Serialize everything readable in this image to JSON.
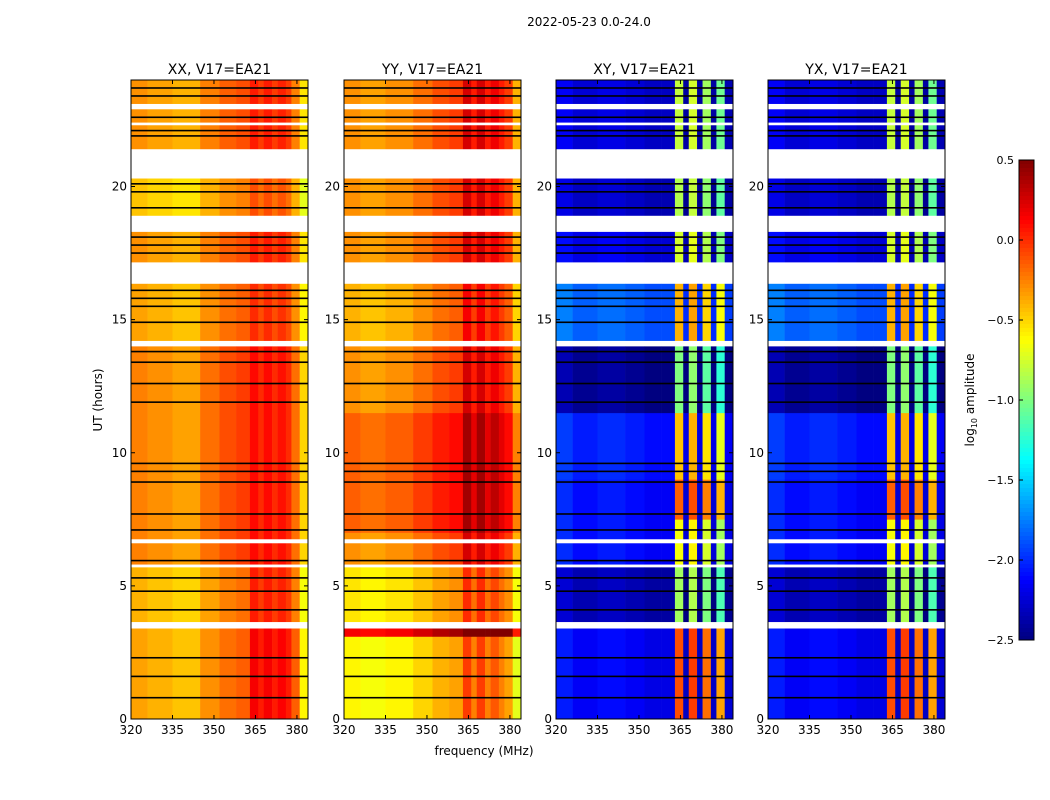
{
  "chart_data": {
    "type": "heatmap",
    "suptitle": "2022-05-23 0.0-24.0",
    "xlabel": "frequency (MHz)",
    "ylabel": "UT (hours)",
    "xlim": [
      320,
      384
    ],
    "ylim": [
      0,
      24
    ],
    "xticks": [
      "320",
      "335",
      "350",
      "365",
      "380"
    ],
    "yticks": [
      "0",
      "5",
      "10",
      "15",
      "20"
    ],
    "colorbar": {
      "label": "log10 amplitude",
      "label_main": "log",
      "label_sub": "10",
      "label_rest": " amplitude",
      "range": [
        -2.5,
        0.5
      ],
      "ticks": [
        "0.5",
        "0.0",
        "−0.5",
        "−1.0",
        "−1.5",
        "−2.0",
        "−2.5"
      ],
      "colormap": "jet"
    },
    "freq_edges": [
      320,
      326,
      335,
      345,
      352,
      358,
      363,
      366,
      368,
      371,
      373,
      376,
      378,
      381,
      384
    ],
    "gaps_hours": [
      [
        20.3,
        21.4
      ],
      [
        18.3,
        18.9
      ],
      [
        16.35,
        17.15
      ],
      [
        14.0,
        14.2
      ],
      [
        3.4,
        3.64
      ],
      [
        22.9,
        23.1
      ],
      [
        22.3,
        22.4
      ],
      [
        5.7,
        5.8
      ],
      [
        6.6,
        6.75
      ]
    ],
    "flag_lines_hours": [
      0.8,
      1.6,
      2.3,
      4.1,
      4.8,
      5.3,
      5.95,
      7.1,
      7.7,
      8.9,
      9.3,
      9.6,
      11.9,
      12.6,
      13.4,
      13.8,
      14.9,
      15.5,
      15.8,
      16.1,
      17.5,
      17.8,
      18.1,
      19.2,
      19.8,
      20.1,
      21.9,
      22.1,
      22.6,
      23.4,
      23.7
    ],
    "panels": [
      {
        "title": "XX, V17=EA21",
        "profile": [
          -0.25,
          -0.3,
          -0.35,
          -0.2,
          -0.1,
          -0.05,
          0.1,
          0.0,
          0.1,
          0.0,
          0.08,
          0.0,
          -0.2,
          -0.5
        ],
        "bands": [
          [
            0,
            3.4,
            -0.1,
            0.15
          ],
          [
            3.64,
            5.7,
            -0.15,
            0.1
          ],
          [
            5.8,
            14,
            0,
            0
          ],
          [
            14.2,
            16.35,
            -0.1,
            0
          ],
          [
            17.15,
            18.3,
            -0.05,
            0
          ],
          [
            18.9,
            20.3,
            -0.2,
            0
          ],
          [
            21.4,
            24,
            -0.05,
            0
          ]
        ]
      },
      {
        "title": "YY, V17=EA21",
        "profile": [
          -0.35,
          -0.4,
          -0.35,
          -0.25,
          -0.15,
          -0.1,
          0.2,
          0.0,
          0.2,
          0.0,
          0.12,
          0.0,
          -0.1,
          -0.45
        ],
        "bands": [
          [
            0,
            3.1,
            -0.25,
            0
          ],
          [
            3.1,
            3.4,
            0.5,
            0.2
          ],
          [
            3.64,
            5.7,
            -0.2,
            0
          ],
          [
            5.8,
            7,
            0.05,
            0
          ],
          [
            7,
            11.5,
            0.2,
            0
          ],
          [
            11.5,
            14,
            0.05,
            0
          ],
          [
            14.2,
            16.35,
            -0.05,
            0
          ],
          [
            17.15,
            18.3,
            0.05,
            0
          ],
          [
            18.9,
            20.3,
            0.05,
            0
          ],
          [
            21.4,
            24,
            0.05,
            0
          ]
        ]
      },
      {
        "title": "XY, V17=EA21",
        "profile": [
          -2.05,
          -2.15,
          -2.1,
          -2.15,
          -2.2,
          -2.2,
          -0.7,
          -2.3,
          -0.65,
          -2.3,
          -0.8,
          -2.3,
          -0.95,
          -2.25
        ],
        "bands": [
          [
            0,
            3.4,
            0,
            0.6
          ],
          [
            3.64,
            5.7,
            -0.2,
            0
          ],
          [
            5.8,
            7.5,
            0.05,
            0
          ],
          [
            7.5,
            9,
            0.05,
            0.5
          ],
          [
            9,
            11.5,
            0.1,
            0.15
          ],
          [
            11.5,
            14,
            -0.3,
            0
          ],
          [
            14.2,
            16.35,
            0.3,
            0
          ],
          [
            17.15,
            18.3,
            -0.05,
            0
          ],
          [
            18.9,
            20.3,
            -0.15,
            0
          ],
          [
            21.4,
            24,
            -0.1,
            0
          ]
        ]
      },
      {
        "title": "YX, V17=EA21",
        "profile": [
          -2.05,
          -2.15,
          -2.1,
          -2.15,
          -2.2,
          -2.2,
          -0.7,
          -2.3,
          -0.65,
          -2.3,
          -0.8,
          -2.3,
          -0.95,
          -2.25
        ],
        "bands": [
          [
            0,
            3.4,
            0,
            0.6
          ],
          [
            3.64,
            5.7,
            -0.2,
            0
          ],
          [
            5.8,
            7.5,
            0.05,
            0
          ],
          [
            7.5,
            9,
            0.05,
            0.5
          ],
          [
            9,
            11.5,
            0.1,
            0.15
          ],
          [
            11.5,
            14,
            -0.3,
            0
          ],
          [
            14.2,
            16.35,
            0.3,
            0
          ],
          [
            17.15,
            18.3,
            -0.05,
            0
          ],
          [
            18.9,
            20.3,
            -0.15,
            0
          ],
          [
            21.4,
            24,
            -0.1,
            0
          ]
        ]
      }
    ]
  }
}
